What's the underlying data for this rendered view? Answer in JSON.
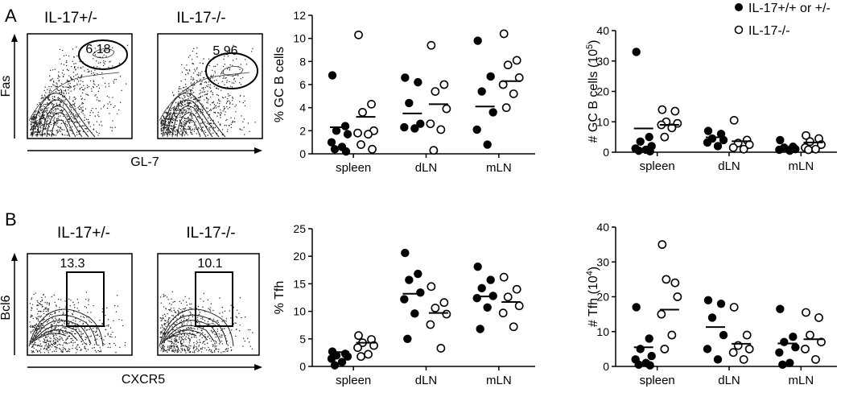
{
  "panels": [
    {
      "letter": "A",
      "facs": {
        "left_title": "IL-17+/-",
        "right_title": "IL-17-/-",
        "left_gate": "6.18",
        "right_gate": "5.96",
        "y_axis": "Fas",
        "x_axis": "GL-7",
        "gate_shape": "oval"
      }
    },
    {
      "letter": "B",
      "facs": {
        "left_title": "IL-17+/-",
        "right_title": "IL-17-/-",
        "left_gate": "13.3",
        "right_gate": "10.1",
        "y_axis": "Bcl6",
        "x_axis": "CXCR5",
        "gate_shape": "rectangle"
      }
    }
  ],
  "legend": {
    "filled": "IL-17+/+ or +/-",
    "open": "IL-17-/-"
  },
  "chart_data": [
    {
      "id": "pctGC",
      "type": "scatter",
      "ylabel": "% GC B cells",
      "ylim": [
        0,
        12
      ],
      "yticks": [
        0,
        2,
        4,
        6,
        8,
        10,
        12
      ],
      "categories": [
        "spleen",
        "dLN",
        "mLN"
      ],
      "series": [
        {
          "name": "IL-17+/+ or +/-",
          "marker": "filled",
          "values": [
            [
              6.8,
              2.4,
              2.0,
              1.7,
              1.0,
              0.6,
              0.4,
              0.2
            ],
            [
              6.6,
              6.2,
              4.4,
              2.6,
              2.3,
              2.2
            ],
            [
              9.8,
              6.7,
              5.4,
              3.6,
              2.1,
              0.8
            ]
          ],
          "means": [
            2.3,
            3.5,
            4.1
          ]
        },
        {
          "name": "IL-17-/-",
          "marker": "open",
          "values": [
            [
              10.3,
              4.3,
              3.6,
              2.0,
              1.8,
              1.7,
              0.8,
              0.4
            ],
            [
              9.4,
              6.0,
              5.4,
              3.9,
              2.6,
              2.1,
              0.3
            ],
            [
              10.4,
              8.1,
              7.7,
              6.6,
              6.0,
              5.2,
              4.0
            ]
          ],
          "means": [
            3.2,
            4.3,
            6.3
          ]
        }
      ]
    },
    {
      "id": "numGC",
      "type": "scatter",
      "ylabel": "# GC B cells (10",
      "ylabel_sup": "5",
      "ylabel_tail": ")",
      "ylim": [
        0,
        40
      ],
      "yticks": [
        0,
        10,
        20,
        30,
        40
      ],
      "categories": [
        "spleen",
        "dLN",
        "mLN"
      ],
      "series": [
        {
          "name": "IL-17+/+ or +/-",
          "marker": "filled",
          "values": [
            [
              33.0,
              5.0,
              3.5,
              2.0,
              1.2,
              0.8,
              0.5,
              0.3
            ],
            [
              7.0,
              6.0,
              4.5,
              4.0,
              3.2,
              2.0
            ],
            [
              4.0,
              1.8,
              1.5,
              1.0,
              0.8,
              0.5
            ]
          ],
          "means": [
            7.8,
            4.9,
            1.8
          ]
        },
        {
          "name": "IL-17-/-",
          "marker": "open",
          "values": [
            [
              14.0,
              13.5,
              10.0,
              9.5,
              9.0,
              8.0,
              5.0
            ],
            [
              10.5,
              4.0,
              3.0,
              2.5,
              1.5,
              1.0
            ],
            [
              5.5,
              4.5,
              3.5,
              2.5,
              1.5,
              1.0,
              0.8
            ]
          ],
          "means": [
            9.0,
            3.6,
            3.2
          ]
        }
      ]
    },
    {
      "id": "pctTfh",
      "type": "scatter",
      "ylabel": "% Tfh",
      "ylim": [
        0,
        25
      ],
      "yticks": [
        0,
        5,
        10,
        15,
        20,
        25
      ],
      "categories": [
        "spleen",
        "dLN",
        "mLN"
      ],
      "series": [
        {
          "name": "IL-17+/+ or +/-",
          "marker": "filled",
          "values": [
            [
              2.7,
              2.3,
              2.0,
              1.8,
              1.4,
              0.8,
              0.2
            ],
            [
              20.6,
              16.8,
              15.7,
              13.4,
              12.2,
              9.6,
              5.0
            ],
            [
              18.1,
              15.7,
              14.2,
              12.8,
              12.4,
              10.7,
              6.8
            ]
          ],
          "means": [
            2.6,
            13.2,
            12.7
          ]
        },
        {
          "name": "IL-17-/-",
          "marker": "open",
          "values": [
            [
              5.6,
              4.9,
              4.3,
              3.8,
              3.4,
              2.2,
              1.8
            ],
            [
              14.5,
              11.6,
              10.6,
              9.5,
              7.6,
              3.3
            ],
            [
              16.2,
              14.0,
              12.6,
              11.0,
              9.7,
              7.2
            ]
          ],
          "means": [
            4.3,
            9.7,
            11.7
          ]
        }
      ]
    },
    {
      "id": "numTfh",
      "type": "scatter",
      "ylabel": "# Tfh (10",
      "ylabel_sup": "4",
      "ylabel_tail": ")",
      "ylim": [
        0,
        40
      ],
      "yticks": [
        0,
        10,
        20,
        30,
        40
      ],
      "categories": [
        "spleen",
        "dLN",
        "mLN"
      ],
      "series": [
        {
          "name": "IL-17+/+ or +/-",
          "marker": "filled",
          "values": [
            [
              17.0,
              8.0,
              5.0,
              3.0,
              2.0,
              1.0,
              0.5,
              0.3
            ],
            [
              19.0,
              18.0,
              14.0,
              9.0,
              5.0,
              2.0
            ],
            [
              16.5,
              8.5,
              7.0,
              5.5,
              4.0,
              1.0,
              0.5
            ]
          ],
          "means": [
            5.5,
            11.3,
            6.6
          ]
        },
        {
          "name": "IL-17-/-",
          "marker": "open",
          "values": [
            [
              35.0,
              24.0,
              25.0,
              20.0,
              15.0,
              9.0,
              5.0
            ],
            [
              17.0,
              9.0,
              6.0,
              5.0,
              4.0,
              2.0
            ],
            [
              15.5,
              14.0,
              9.0,
              7.0,
              5.0,
              2.0
            ]
          ],
          "means": [
            16.3,
            6.5,
            7.8
          ]
        }
      ]
    }
  ]
}
